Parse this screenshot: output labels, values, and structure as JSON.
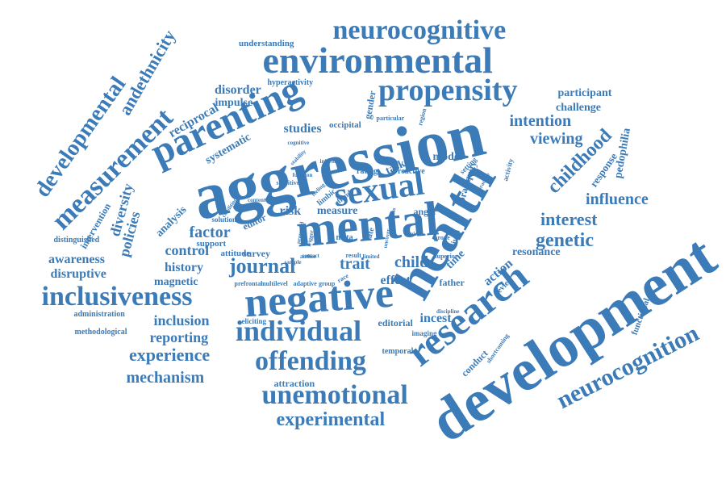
{
  "color": "#3b7bb8",
  "words": [
    "aggression",
    "development",
    "health",
    "mental",
    "negative",
    "environmental",
    "parenting",
    "research",
    "sexual",
    "propensity",
    "neurocognitive",
    "individual",
    "unemotional",
    "offending",
    "inclusiveness",
    "neurocognition",
    "measurement",
    "experimental",
    "developmental",
    "childhood",
    "journal",
    "andethnicity",
    "genetic",
    "experience",
    "mechanism",
    "interest",
    "influence",
    "viewing",
    "intention",
    "factor",
    "control",
    "child",
    "trait",
    "policies",
    "diversity",
    "disruptive",
    "awareness",
    "inclusion",
    "reporting",
    "history",
    "magnetic",
    "reciprocal",
    "disorder",
    "impulse",
    "participant",
    "challenge",
    "pedophilia",
    "response",
    "studies",
    "systematic",
    "model",
    "analysis",
    "measure",
    "risk",
    "effect",
    "incest",
    "action",
    "resonance",
    "editorial",
    "time",
    "father",
    "review",
    "conduct",
    "functional",
    "attraction",
    "temporal",
    "survey",
    "attitude",
    "support",
    "editor",
    "intervention",
    "task",
    "gender",
    "brain",
    "equity",
    "occipital",
    "understanding",
    "hyperactivity",
    "distinguished",
    "administration",
    "methodological",
    "eliciting",
    "imaging",
    "shortcoming",
    "anger",
    "lived",
    "setting",
    "activity",
    "reactive",
    "rating",
    "limbic",
    "sensitive",
    "solution",
    "prefrontal",
    "multilevel",
    "adaptive",
    "group",
    "race",
    "superior",
    "discipline",
    "late",
    "meta",
    "region",
    "particular",
    "cognitive",
    "content",
    "function",
    "feeling",
    "stability",
    "inferior",
    "offend",
    "prone",
    "result",
    "limited",
    "author",
    "sample",
    "clinical",
    "contact",
    "condition",
    "practice",
    "trigger",
    "proposed",
    "uncover",
    "process"
  ]
}
